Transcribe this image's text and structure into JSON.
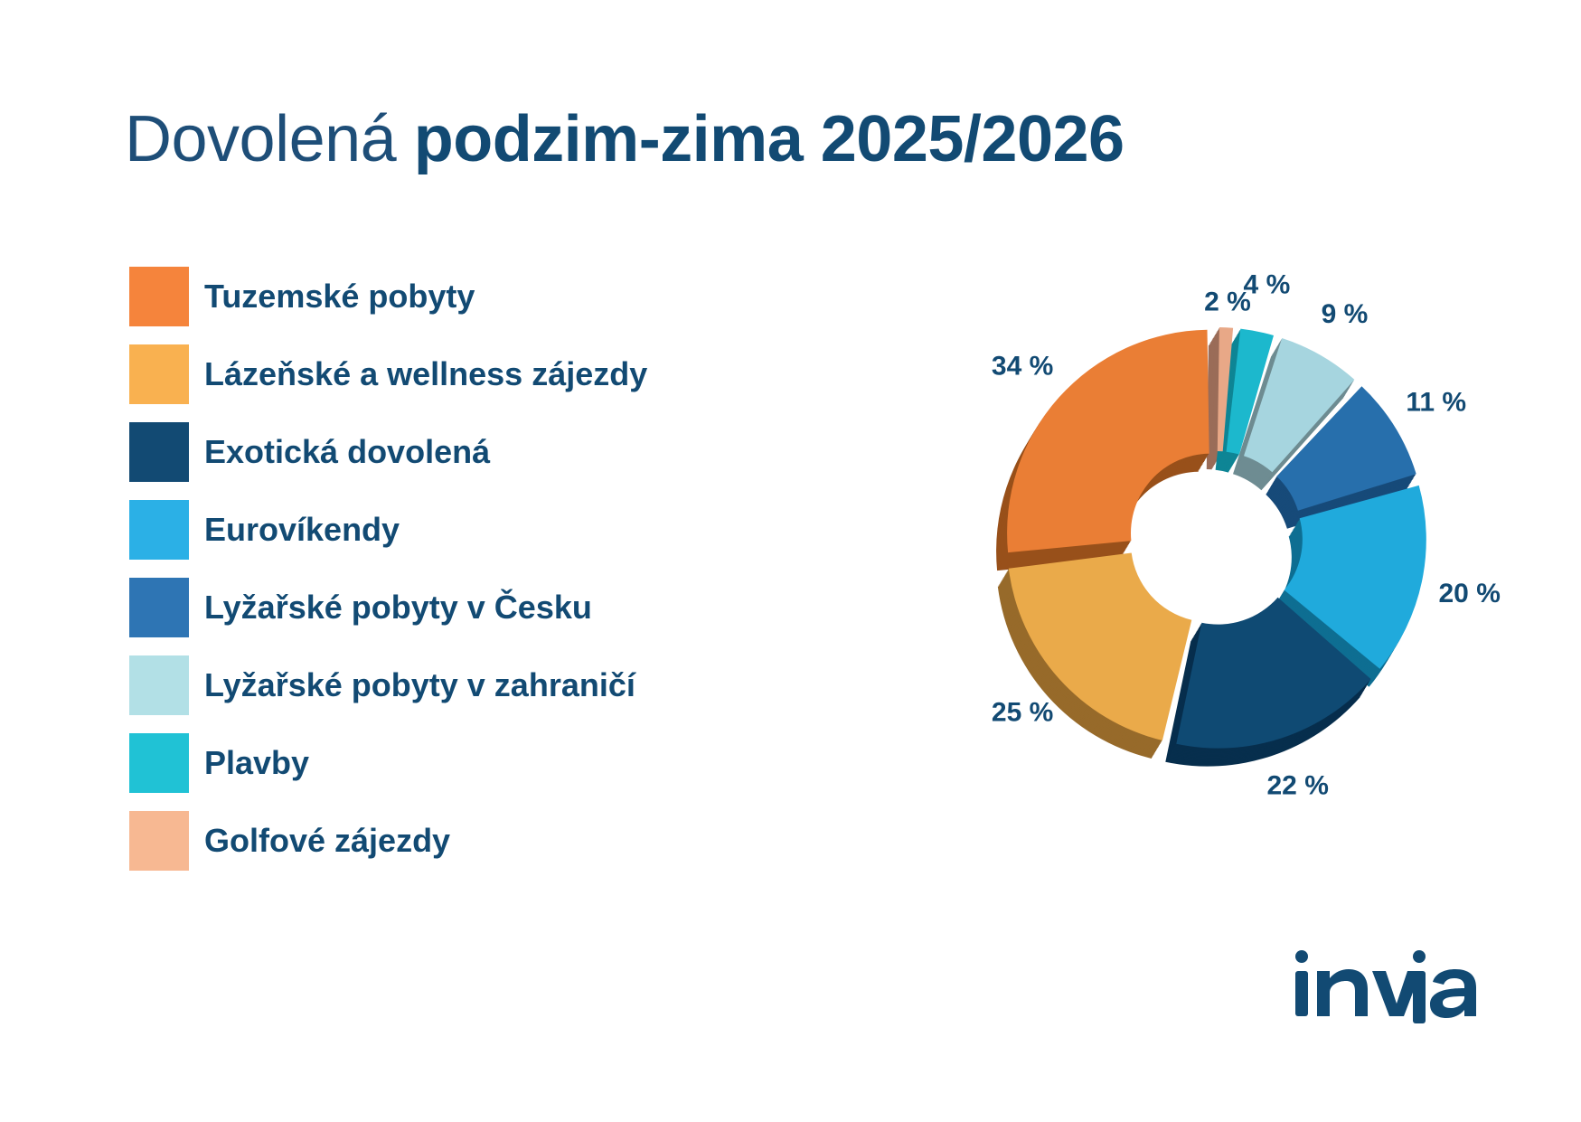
{
  "header": {
    "title_light": "Dovolená",
    "title_bold": "podzim-zima 2025/2026"
  },
  "brand": {
    "logo_text": "invia",
    "color": "#124a73"
  },
  "chart_data": {
    "type": "pie",
    "variant": "3d-donut",
    "title": "Dovolená podzim-zima 2025/2026",
    "legend_position": "left",
    "categories": [
      "Tuzemské pobyty",
      "Lázeňské a wellness zájezdy",
      "Exotická dovolená",
      "Eurovíkendy",
      "Lyžařské pobyty v Česku",
      "Lyžařské pobyty v zahraničí",
      "Plavby",
      "Golfové zájezdy"
    ],
    "values": [
      34,
      25,
      22,
      20,
      11,
      9,
      4,
      2
    ],
    "data_labels": [
      "34 %",
      "25 %",
      "22 %",
      "20 %",
      "11 %",
      "9 %",
      "4 %",
      "2 %"
    ],
    "legend_colors": [
      "#f5843c",
      "#f9b150",
      "#124a73",
      "#2bb0e6",
      "#2e75b4",
      "#b2e0e6",
      "#20c2d5",
      "#f7b892"
    ],
    "slice_colors": [
      "#ea7e35",
      "#eaaa4a",
      "#0f4a73",
      "#20aadc",
      "#276fac",
      "#a6d5df",
      "#1cb8cd",
      "#e8a887"
    ],
    "side_colors": [
      "#98501a",
      "#976a2a",
      "#072e4d",
      "#0e6e92",
      "#174a79",
      "#6e8c92",
      "#0e8595",
      "#9a6c58"
    ]
  }
}
